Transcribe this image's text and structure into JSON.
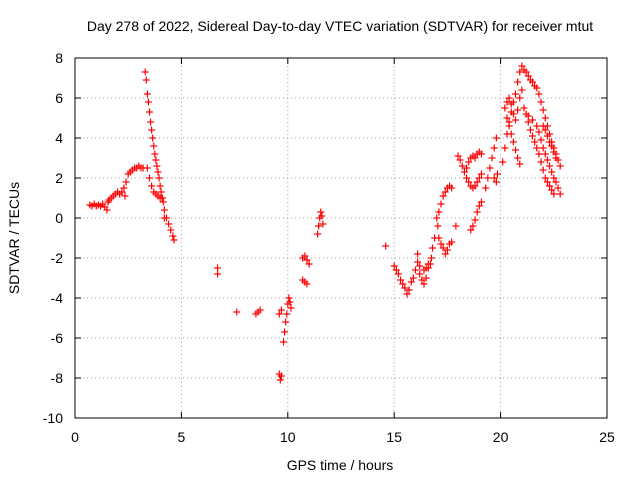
{
  "chart_data": {
    "type": "scatter",
    "title": "Day 278 of 2022, Sidereal Day-to-day VTEC variation (SDTVAR) for receiver mtut",
    "xlabel": "GPS time / hours",
    "ylabel": "SDTVAR / TECUs",
    "xlim": [
      0,
      25
    ],
    "ylim": [
      -10,
      8
    ],
    "xticks": [
      0,
      5,
      10,
      15,
      20,
      25
    ],
    "yticks": [
      -10,
      -8,
      -6,
      -4,
      -2,
      0,
      2,
      4,
      6,
      8
    ],
    "grid": true,
    "marker": "+",
    "color": "#ff0000",
    "series": [
      {
        "name": "SDTVAR",
        "points": [
          [
            0.7,
            0.65
          ],
          [
            0.8,
            0.6
          ],
          [
            0.9,
            0.7
          ],
          [
            1.0,
            0.6
          ],
          [
            1.1,
            0.65
          ],
          [
            1.2,
            0.6
          ],
          [
            1.3,
            0.7
          ],
          [
            1.4,
            0.55
          ],
          [
            1.5,
            0.4
          ],
          [
            1.55,
            0.8
          ],
          [
            1.6,
            0.9
          ],
          [
            1.7,
            1.0
          ],
          [
            1.8,
            1.1
          ],
          [
            1.9,
            1.2
          ],
          [
            2.0,
            1.3
          ],
          [
            2.1,
            1.2
          ],
          [
            2.2,
            1.3
          ],
          [
            2.3,
            1.5
          ],
          [
            2.35,
            1.1
          ],
          [
            2.4,
            1.8
          ],
          [
            2.5,
            2.2
          ],
          [
            2.6,
            2.3
          ],
          [
            2.7,
            2.4
          ],
          [
            2.8,
            2.5
          ],
          [
            2.9,
            2.5
          ],
          [
            3.0,
            2.6
          ],
          [
            3.1,
            2.5
          ],
          [
            3.2,
            2.5
          ],
          [
            3.3,
            7.3
          ],
          [
            3.35,
            6.9
          ],
          [
            3.4,
            6.2
          ],
          [
            3.45,
            5.8
          ],
          [
            3.5,
            5.3
          ],
          [
            3.55,
            4.8
          ],
          [
            3.6,
            4.4
          ],
          [
            3.65,
            4.0
          ],
          [
            3.7,
            3.6
          ],
          [
            3.75,
            3.2
          ],
          [
            3.8,
            2.9
          ],
          [
            3.85,
            2.6
          ],
          [
            3.9,
            2.3
          ],
          [
            3.95,
            2.0
          ],
          [
            4.0,
            1.6
          ],
          [
            4.05,
            1.3
          ],
          [
            4.1,
            1.0
          ],
          [
            4.15,
            0.8
          ],
          [
            4.2,
            0.4
          ],
          [
            4.3,
            0.0
          ],
          [
            4.4,
            -0.3
          ],
          [
            4.5,
            -0.6
          ],
          [
            4.6,
            -0.9
          ],
          [
            4.65,
            -1.1
          ],
          [
            3.4,
            2.5
          ],
          [
            3.5,
            2.0
          ],
          [
            3.6,
            1.6
          ],
          [
            3.7,
            1.3
          ],
          [
            3.8,
            1.2
          ],
          [
            3.9,
            1.1
          ],
          [
            4.0,
            1.0
          ],
          [
            4.1,
            1.0
          ],
          [
            4.2,
            0.0
          ],
          [
            6.7,
            -2.5
          ],
          [
            6.7,
            -2.8
          ],
          [
            7.6,
            -4.7
          ],
          [
            8.5,
            -4.8
          ],
          [
            8.6,
            -4.7
          ],
          [
            8.7,
            -4.6
          ],
          [
            9.6,
            -7.8
          ],
          [
            9.65,
            -8.1
          ],
          [
            9.7,
            -7.9
          ],
          [
            9.6,
            -4.8
          ],
          [
            9.7,
            -4.6
          ],
          [
            9.8,
            -6.2
          ],
          [
            9.85,
            -5.7
          ],
          [
            9.9,
            -5.2
          ],
          [
            9.95,
            -4.8
          ],
          [
            10.0,
            -4.3
          ],
          [
            10.05,
            -4.0
          ],
          [
            10.1,
            -4.2
          ],
          [
            10.15,
            -4.5
          ],
          [
            10.7,
            -3.1
          ],
          [
            10.8,
            -3.2
          ],
          [
            10.9,
            -3.3
          ],
          [
            10.7,
            -2.0
          ],
          [
            10.8,
            -1.9
          ],
          [
            10.9,
            -2.1
          ],
          [
            11.0,
            -2.3
          ],
          [
            11.4,
            -0.8
          ],
          [
            11.45,
            -0.4
          ],
          [
            11.5,
            0.0
          ],
          [
            11.55,
            0.3
          ],
          [
            11.6,
            0.1
          ],
          [
            11.65,
            -0.3
          ],
          [
            14.6,
            -1.4
          ],
          [
            15.0,
            -2.4
          ],
          [
            15.1,
            -2.6
          ],
          [
            15.2,
            -2.8
          ],
          [
            15.3,
            -3.1
          ],
          [
            15.4,
            -3.3
          ],
          [
            15.5,
            -3.5
          ],
          [
            15.6,
            -3.8
          ],
          [
            15.7,
            -3.6
          ],
          [
            15.8,
            -3.2
          ],
          [
            15.9,
            -3.0
          ],
          [
            16.0,
            -2.6
          ],
          [
            16.1,
            -2.2
          ],
          [
            16.2,
            -2.8
          ],
          [
            16.3,
            -3.1
          ],
          [
            16.4,
            -3.3
          ],
          [
            16.5,
            -3.0
          ],
          [
            16.6,
            -2.5
          ],
          [
            16.7,
            -2.3
          ],
          [
            16.75,
            -2.0
          ],
          [
            16.1,
            -1.8
          ],
          [
            16.2,
            -2.4
          ],
          [
            16.4,
            -2.6
          ],
          [
            16.5,
            -2.5
          ],
          [
            16.6,
            -2.3
          ],
          [
            16.8,
            -1.5
          ],
          [
            16.9,
            -1.0
          ],
          [
            17.0,
            0.0
          ],
          [
            17.05,
            -0.4
          ],
          [
            17.1,
            0.3
          ],
          [
            17.2,
            0.7
          ],
          [
            17.3,
            1.1
          ],
          [
            17.4,
            1.3
          ],
          [
            17.5,
            1.5
          ],
          [
            17.6,
            1.6
          ],
          [
            17.7,
            1.5
          ],
          [
            17.1,
            -1.0
          ],
          [
            17.2,
            -1.3
          ],
          [
            17.3,
            -1.5
          ],
          [
            17.4,
            -1.8
          ],
          [
            17.5,
            -1.6
          ],
          [
            17.6,
            -1.3
          ],
          [
            17.7,
            -1.2
          ],
          [
            17.9,
            -0.4
          ],
          [
            18.0,
            3.1
          ],
          [
            18.1,
            2.9
          ],
          [
            18.2,
            2.6
          ],
          [
            18.3,
            2.3
          ],
          [
            18.4,
            2.0
          ],
          [
            18.5,
            1.8
          ],
          [
            18.6,
            1.6
          ],
          [
            18.7,
            1.5
          ],
          [
            18.8,
            1.6
          ],
          [
            18.9,
            1.8
          ],
          [
            19.0,
            2.0
          ],
          [
            19.1,
            2.2
          ],
          [
            18.6,
            -0.6
          ],
          [
            18.7,
            -0.4
          ],
          [
            18.8,
            -0.1
          ],
          [
            18.9,
            0.3
          ],
          [
            19.0,
            0.6
          ],
          [
            19.1,
            0.8
          ],
          [
            18.4,
            2.5
          ],
          [
            18.5,
            2.8
          ],
          [
            18.6,
            3.0
          ],
          [
            18.7,
            3.1
          ],
          [
            18.8,
            3.0
          ],
          [
            18.9,
            3.2
          ],
          [
            19.0,
            3.3
          ],
          [
            19.1,
            3.2
          ],
          [
            19.3,
            1.5
          ],
          [
            19.4,
            2.0
          ],
          [
            19.5,
            2.5
          ],
          [
            19.6,
            3.0
          ],
          [
            19.7,
            3.5
          ],
          [
            19.8,
            4.0
          ],
          [
            19.7,
            2.0
          ],
          [
            19.8,
            1.8
          ],
          [
            19.85,
            2.2
          ],
          [
            20.1,
            2.8
          ],
          [
            20.2,
            3.5
          ],
          [
            20.3,
            4.2
          ],
          [
            20.4,
            4.8
          ],
          [
            20.5,
            5.3
          ],
          [
            20.6,
            5.8
          ],
          [
            20.7,
            6.2
          ],
          [
            20.8,
            6.8
          ],
          [
            20.9,
            7.3
          ],
          [
            21.0,
            7.6
          ],
          [
            21.1,
            7.4
          ],
          [
            20.2,
            5.5
          ],
          [
            20.3,
            5.0
          ],
          [
            20.4,
            4.6
          ],
          [
            20.5,
            4.2
          ],
          [
            20.6,
            3.8
          ],
          [
            20.7,
            3.4
          ],
          [
            20.8,
            3.0
          ],
          [
            20.9,
            2.7
          ],
          [
            20.3,
            5.8
          ],
          [
            20.4,
            6.0
          ],
          [
            20.5,
            5.7
          ],
          [
            20.6,
            5.2
          ],
          [
            20.7,
            4.9
          ],
          [
            20.8,
            5.4
          ],
          [
            20.9,
            6.0
          ],
          [
            21.0,
            6.4
          ],
          [
            21.1,
            5.5
          ],
          [
            21.2,
            5.2
          ],
          [
            21.3,
            4.8
          ],
          [
            21.4,
            4.4
          ],
          [
            21.5,
            4.1
          ],
          [
            21.6,
            3.8
          ],
          [
            21.7,
            3.5
          ],
          [
            21.8,
            3.2
          ],
          [
            21.9,
            2.8
          ],
          [
            22.0,
            2.4
          ],
          [
            22.1,
            2.0
          ],
          [
            22.2,
            1.8
          ],
          [
            22.3,
            1.6
          ],
          [
            22.4,
            1.4
          ],
          [
            22.5,
            1.2
          ],
          [
            21.2,
            7.3
          ],
          [
            21.3,
            7.1
          ],
          [
            21.4,
            6.9
          ],
          [
            21.5,
            6.8
          ],
          [
            21.6,
            6.6
          ],
          [
            21.7,
            6.5
          ],
          [
            21.8,
            6.2
          ],
          [
            21.9,
            5.8
          ],
          [
            22.0,
            5.4
          ],
          [
            22.1,
            5.0
          ],
          [
            22.2,
            4.6
          ],
          [
            22.3,
            4.2
          ],
          [
            22.4,
            3.8
          ],
          [
            22.5,
            3.5
          ],
          [
            22.6,
            3.2
          ],
          [
            22.7,
            2.9
          ],
          [
            22.8,
            2.6
          ],
          [
            21.3,
            5.1
          ],
          [
            21.5,
            4.9
          ],
          [
            21.7,
            4.6
          ],
          [
            21.8,
            4.3
          ],
          [
            21.9,
            3.9
          ],
          [
            22.0,
            3.5
          ],
          [
            22.1,
            3.2
          ],
          [
            22.2,
            2.9
          ],
          [
            22.3,
            2.6
          ],
          [
            22.4,
            2.3
          ],
          [
            22.5,
            2.0
          ],
          [
            22.6,
            1.8
          ],
          [
            22.7,
            1.5
          ],
          [
            22.8,
            1.2
          ],
          [
            22.0,
            4.6
          ],
          [
            22.1,
            4.4
          ],
          [
            22.2,
            4.1
          ],
          [
            22.3,
            3.8
          ],
          [
            22.4,
            3.6
          ],
          [
            22.5,
            3.3
          ],
          [
            22.6,
            3.0
          ]
        ]
      }
    ]
  }
}
